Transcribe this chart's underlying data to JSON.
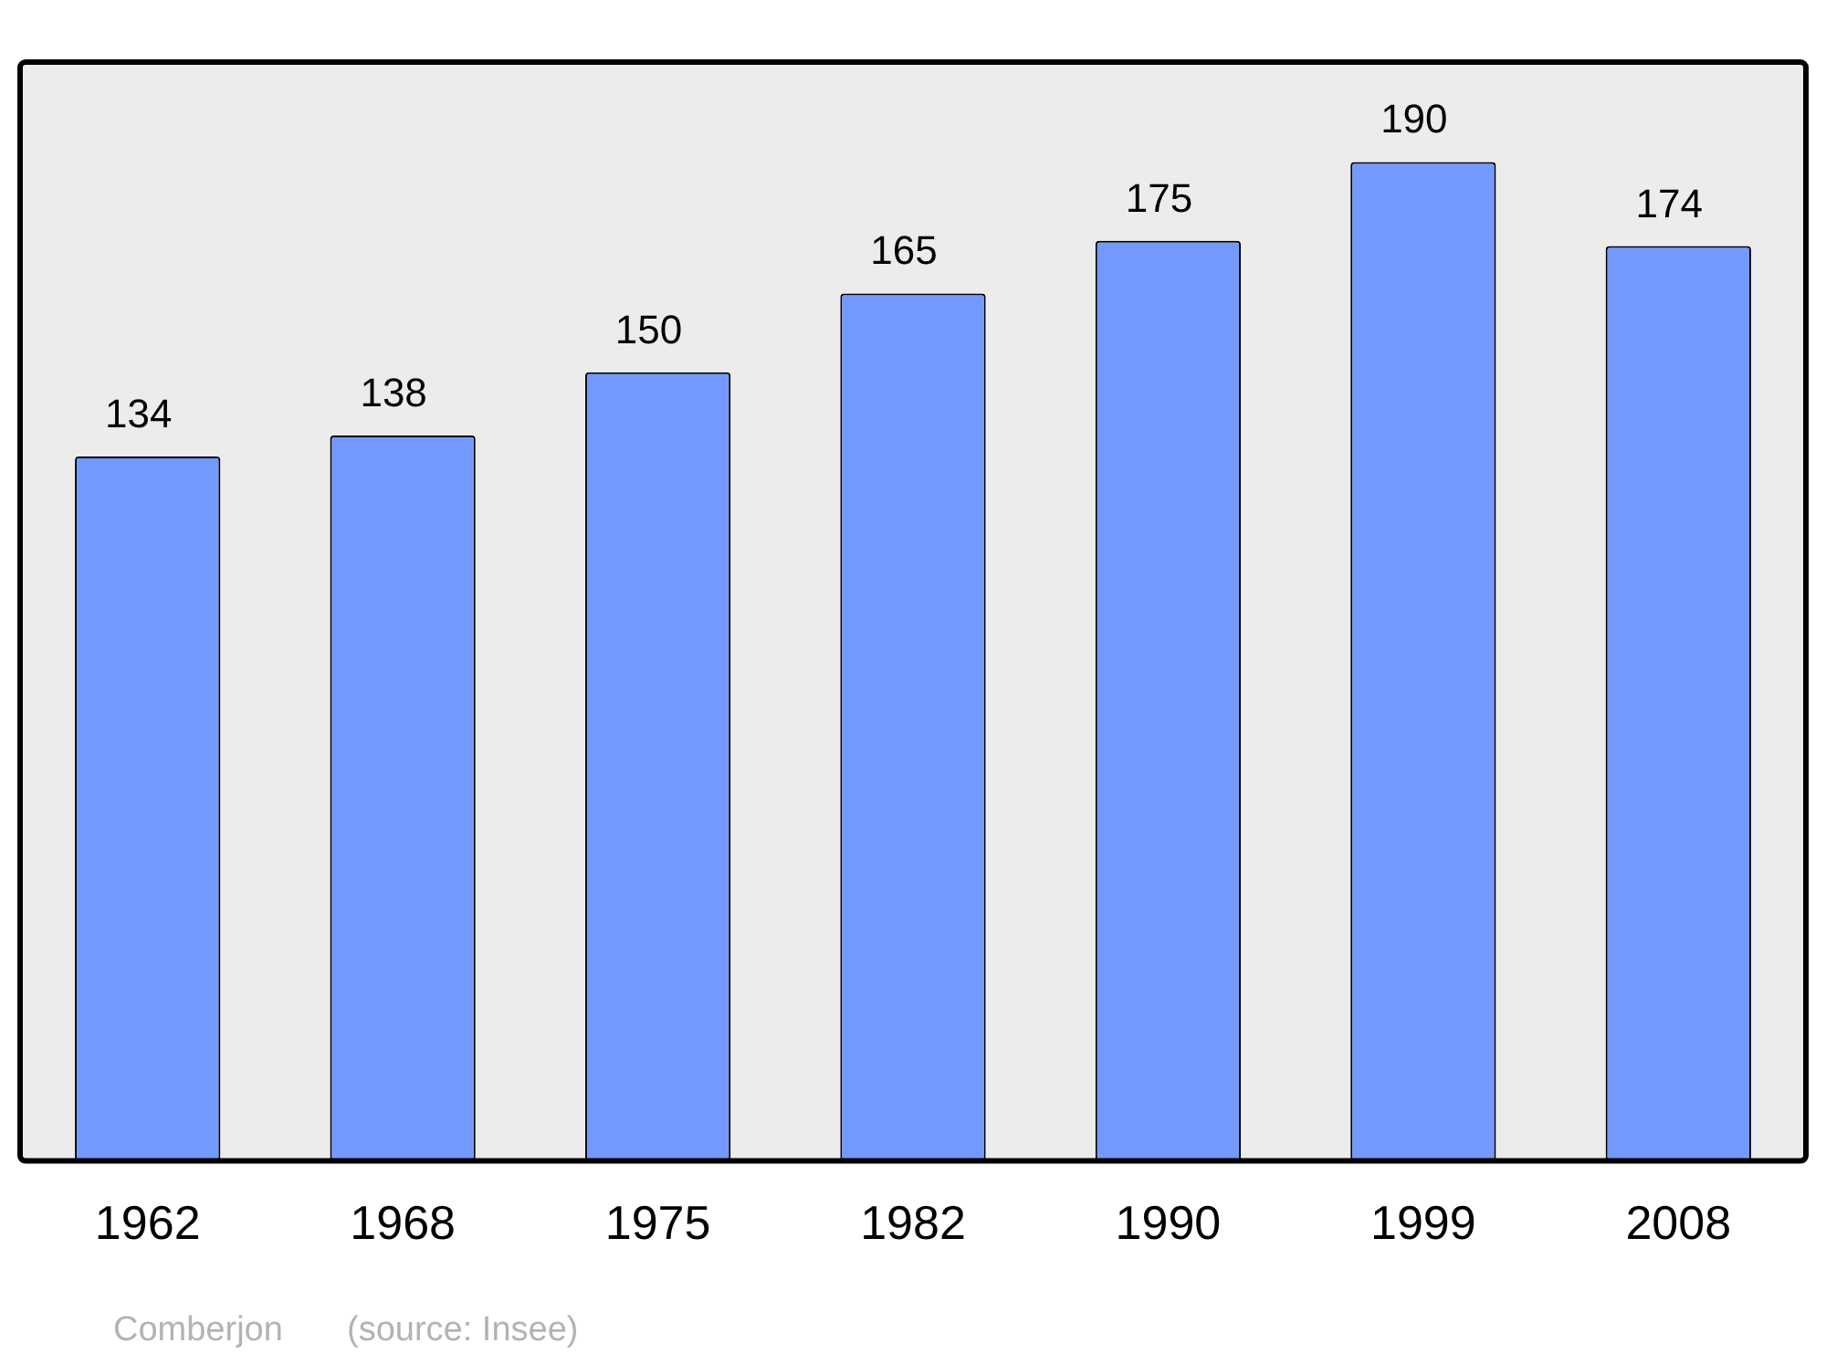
{
  "chart_data": {
    "type": "bar",
    "categories": [
      "1962",
      "1968",
      "1975",
      "1982",
      "1990",
      "1999",
      "2008"
    ],
    "values": [
      134,
      138,
      150,
      165,
      175,
      190,
      174
    ],
    "color": "#7399ff",
    "ylim": [
      0,
      209
    ],
    "tick_labels": "x",
    "data_labels": true,
    "grid": false,
    "legend": false,
    "annotations": [
      "Comberjon",
      "(source: Insee)"
    ]
  }
}
